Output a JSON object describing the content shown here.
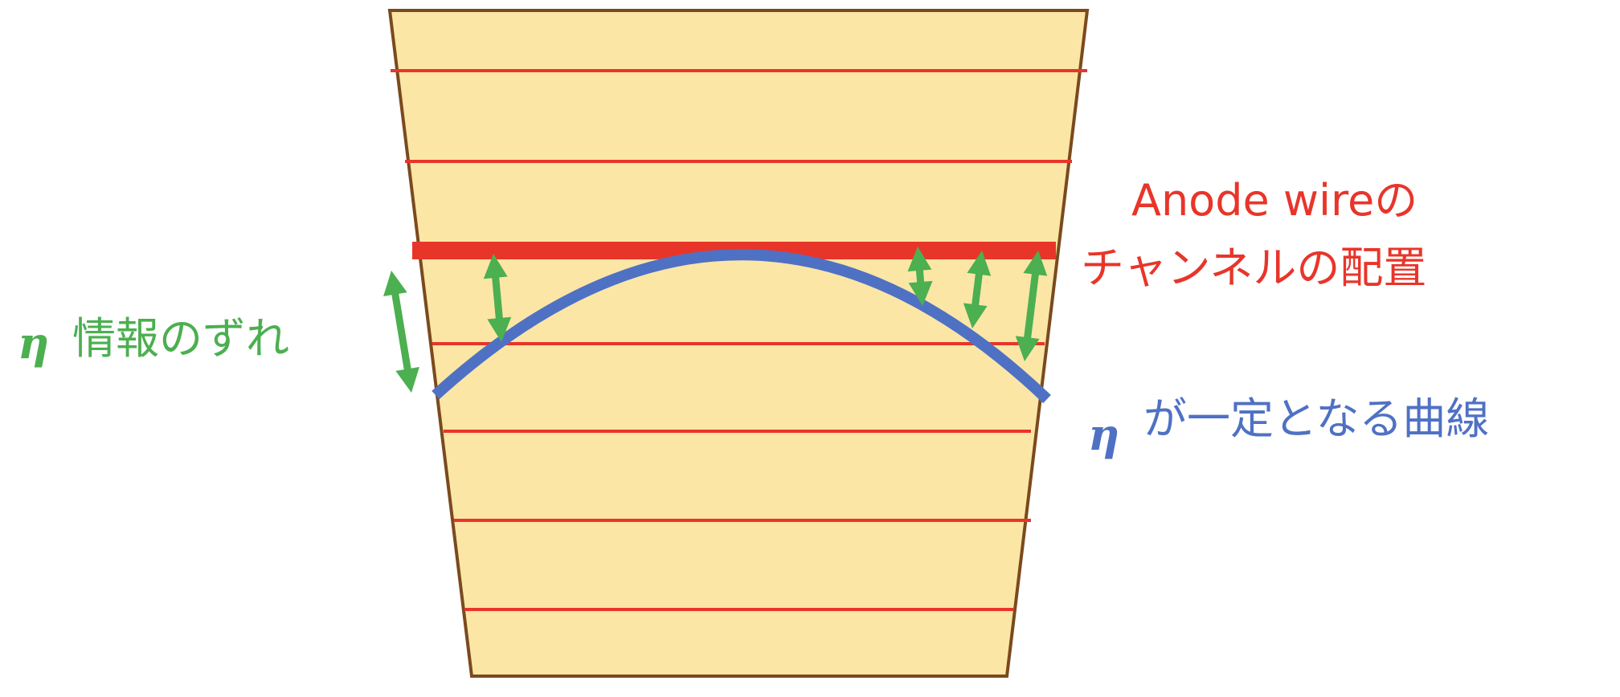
{
  "colors": {
    "panel_fill": "#fbe6a6",
    "panel_border": "#7a4a1e",
    "wire_red": "#e8352a",
    "curve_blue": "#4f71c4",
    "arrow_green": "#4caf50",
    "label_red": "#e8352a",
    "label_green": "#4caf50",
    "label_blue": "#4f71c4"
  },
  "labels": {
    "anode_line1": "Anode wireの",
    "anode_line2": "チャンネルの配置",
    "shift_symbol": "η",
    "shift_text": "情報のずれ",
    "curve_symbol": "η",
    "curve_text": "が一定となる曲線"
  }
}
